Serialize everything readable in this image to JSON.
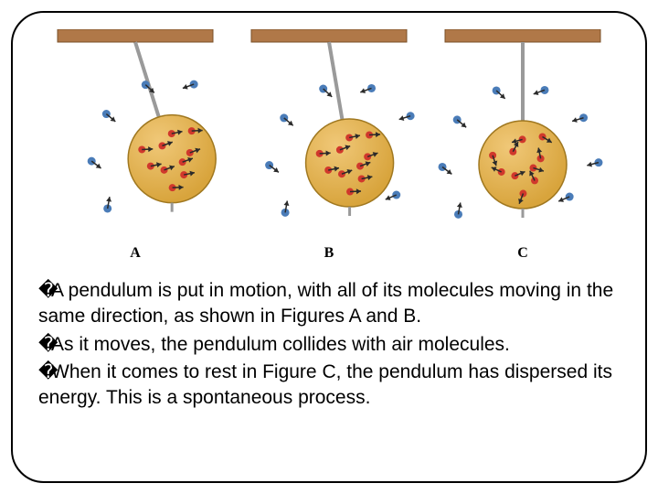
{
  "figures": {
    "labels": [
      "A",
      "B",
      "C"
    ],
    "pendulum_ball_color": "#d8a43c",
    "pendulum_ball_highlight": "#f0c878",
    "pendulum_ball_stroke": "#a07820",
    "internal_molecule_color": "#d0382c",
    "air_molecule_color": "#4a7cb8",
    "arrow_color": "#2a2a2a",
    "rod_color": "#9a9a9a",
    "ceiling_color": "#b07848",
    "ceiling_stroke": "#7a5028",
    "label_color": "#000000",
    "angles_deg": [
      18,
      10,
      0
    ]
  },
  "text": {
    "para1": "A pendulum is put in motion, with all of its molecules moving in the same direction, as shown in Figures A and B.",
    "para2": "As it moves, the pendulum collides with air molecules.",
    "para3": "When it comes to rest in Figure C, the pendulum has dispersed its energy. This is a spontaneous process."
  },
  "bullet_glyph": "�"
}
